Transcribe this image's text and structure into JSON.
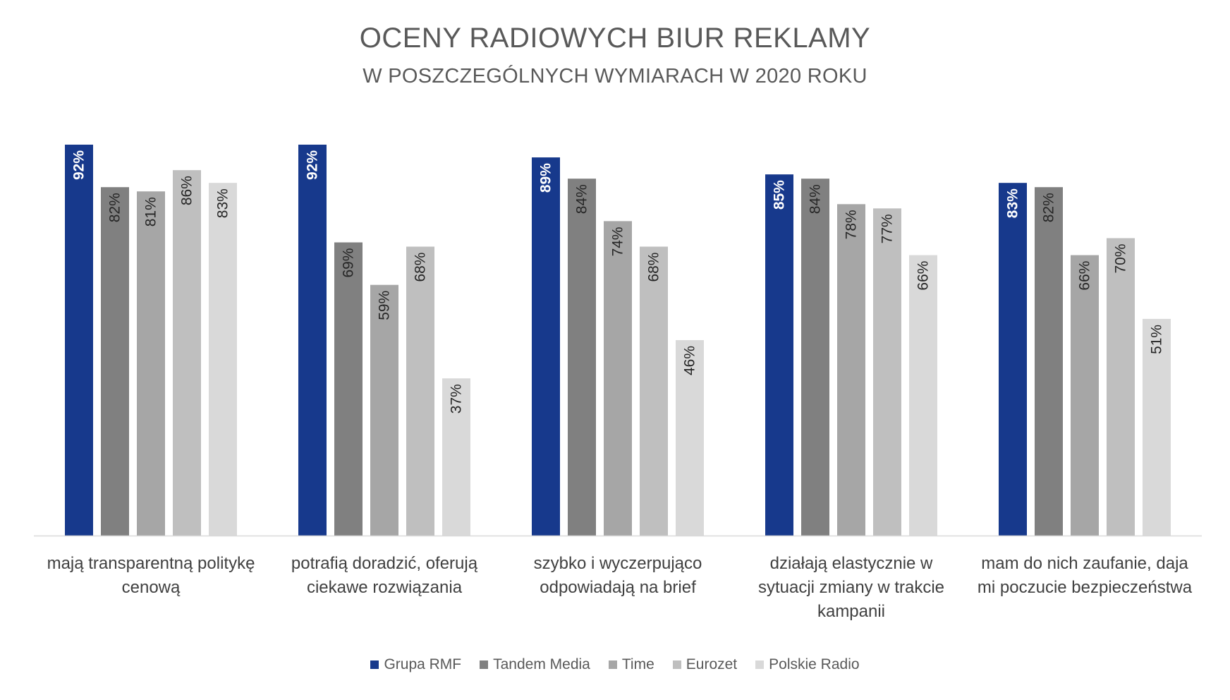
{
  "chart_data": {
    "type": "bar",
    "title": "OCENY RADIOWYCH BIUR REKLAMY",
    "subtitle": "W POSZCZEGÓLNYCH WYMIARACH W 2020 ROKU",
    "categories": [
      "mają transparentną politykę cenową",
      "potrafią doradzić, oferują ciekawe rozwiązania",
      "szybko i wyczerpująco odpowiadają na brief",
      "działają elastycznie w sytuacji zmiany w trakcie kampanii",
      "mam do nich zaufanie, daja mi poczucie bezpieczeństwa"
    ],
    "category_lines": [
      [
        "mają transparentną politykę",
        "cenową"
      ],
      [
        "potrafią doradzić, oferują",
        "ciekawe rozwiązania"
      ],
      [
        "szybko i wyczerpująco",
        "odpowiadają na brief"
      ],
      [
        "działają elastycznie w",
        "sytuacji zmiany w trakcie",
        "kampanii"
      ],
      [
        "mam do nich zaufanie, daja",
        "mi poczucie bezpieczeństwa"
      ]
    ],
    "series": [
      {
        "name": "Grupa RMF",
        "color": "#17398c",
        "label_color": "#ffffff",
        "bold": true,
        "values": [
          92,
          92,
          89,
          85,
          83
        ]
      },
      {
        "name": "Tandem Media",
        "color": "#808080",
        "label_color": "#262626",
        "bold": false,
        "values": [
          82,
          69,
          84,
          84,
          82
        ]
      },
      {
        "name": "Time",
        "color": "#a6a6a6",
        "label_color": "#262626",
        "bold": false,
        "values": [
          81,
          59,
          74,
          78,
          66
        ]
      },
      {
        "name": "Eurozet",
        "color": "#bfbfbf",
        "label_color": "#262626",
        "bold": false,
        "values": [
          86,
          68,
          68,
          77,
          70
        ]
      },
      {
        "name": "Polskie Radio",
        "color": "#d9d9d9",
        "label_color": "#262626",
        "bold": false,
        "values": [
          83,
          37,
          46,
          66,
          51
        ]
      }
    ],
    "value_suffix": "%",
    "ylim": [
      0,
      100
    ],
    "grid": false,
    "legend_position": "bottom"
  }
}
